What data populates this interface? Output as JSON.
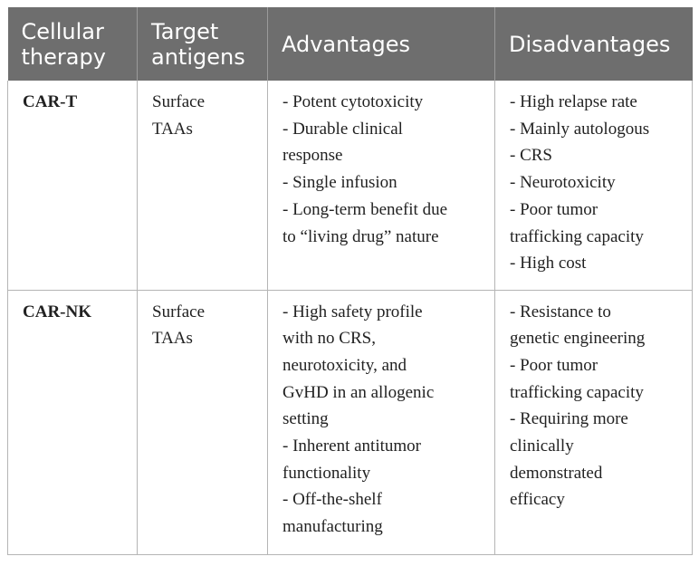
{
  "headers": {
    "therapy": [
      "Cellular",
      "therapy"
    ],
    "antigens": [
      "Target",
      "antigens"
    ],
    "advantages": "Advantages",
    "disadvantages": "Disadvantages"
  },
  "rows": [
    {
      "therapy": "CAR-T",
      "antigens": [
        "Surface",
        "TAAs"
      ],
      "advantages": [
        "- Potent cytotoxicity",
        "- Durable clinical",
        "response",
        "- Single infusion",
        "- Long-term benefit due",
        "to “living drug” nature"
      ],
      "disadvantages": [
        "- High relapse rate",
        "- Mainly autologous",
        "- CRS",
        "- Neurotoxicity",
        "- Poor tumor",
        "trafficking capacity",
        "- High cost"
      ]
    },
    {
      "therapy": "CAR-NK",
      "antigens": [
        "Surface",
        "TAAs"
      ],
      "advantages": [
        "- High safety profile",
        "with no CRS,",
        "neurotoxicity, and",
        "GvHD in an allogenic",
        "setting",
        "- Inherent antitumor",
        "functionality",
        "- Off-the-shelf",
        "manufacturing"
      ],
      "disadvantages": [
        "- Resistance to",
        "genetic engineering",
        "- Poor tumor",
        "trafficking capacity",
        "- Requiring more",
        "clinically",
        "demonstrated",
        "efficacy"
      ]
    }
  ]
}
